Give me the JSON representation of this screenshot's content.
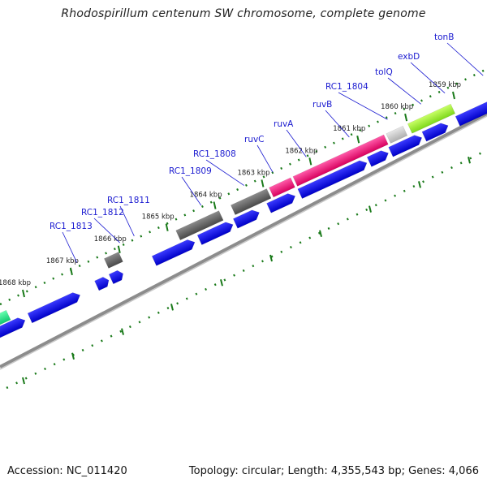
{
  "title": "Rhodospirillum centenum SW chromosome, complete genome",
  "footer": {
    "accession": "Accession: NC_011420",
    "summary": "Topology: circular; Length: 4,355,543 bp; Genes: 4,066"
  },
  "ruler": [
    {
      "label": "1859 kbp",
      "pos": 1859
    },
    {
      "label": "1860 kbp",
      "pos": 1860
    },
    {
      "label": "1861 kbp",
      "pos": 1861
    },
    {
      "label": "1862 kbp",
      "pos": 1862
    },
    {
      "label": "1863 kbp",
      "pos": 1863
    },
    {
      "label": "1864 kbp",
      "pos": 1864
    },
    {
      "label": "1865 kbp",
      "pos": 1865
    },
    {
      "label": "1866 kbp",
      "pos": 1866
    },
    {
      "label": "1867 kbp",
      "pos": 1867
    },
    {
      "label": "1868 kbp",
      "pos": 1868
    }
  ],
  "gene_labels": [
    {
      "name": "tonB",
      "pos": 1858.3
    },
    {
      "name": "exbD",
      "pos": 1859.1
    },
    {
      "name": "tolQ",
      "pos": 1859.6
    },
    {
      "name": "RC1_1804",
      "pos": 1860.3
    },
    {
      "name": "ruvB",
      "pos": 1861.1
    },
    {
      "name": "ruvA",
      "pos": 1862.0
    },
    {
      "name": "ruvC",
      "pos": 1862.7
    },
    {
      "name": "RC1_1808",
      "pos": 1863.3
    },
    {
      "name": "RC1_1809",
      "pos": 1864.2
    },
    {
      "name": "RC1_1811",
      "pos": 1865.6
    },
    {
      "name": "RC1_1812",
      "pos": 1865.9
    },
    {
      "name": "RC1_1813",
      "pos": 1866.8
    }
  ],
  "feature_colors": {
    "cds": "#0000ee",
    "pseudo": "#666666",
    "ruv": "#ee1a7a",
    "tol": "#cccccc",
    "exb": "#99ee33",
    "other": "#22ee88",
    "ticks": "#1a7a1a",
    "backbone": "#888888"
  }
}
